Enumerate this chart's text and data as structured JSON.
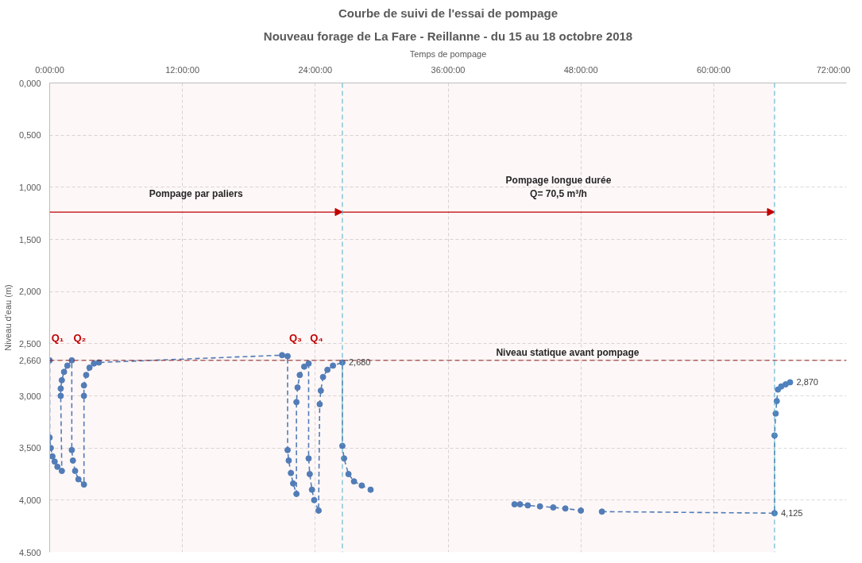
{
  "chart_data": {
    "type": "line",
    "title": "Courbe de suivi de l'essai de pompage",
    "subtitle": "Nouveau forage de La Fare - Reillanne - du 15 au 18 octobre 2018",
    "xlabel": "Temps de pompage",
    "ylabel": "Niveau d'eau (m)",
    "xlim": [
      0,
      72
    ],
    "xticks": [
      {
        "value": 0,
        "label": "0:00:00"
      },
      {
        "value": 12,
        "label": "12:00:00"
      },
      {
        "value": 24,
        "label": "24:00:00"
      },
      {
        "value": 36,
        "label": "36:00:00"
      },
      {
        "value": 48,
        "label": "48:00:00"
      },
      {
        "value": 60,
        "label": "60:00:00"
      },
      {
        "value": 72,
        "label": "72:00:00"
      }
    ],
    "ylim": [
      4.5,
      0
    ],
    "yticks": [
      {
        "value": 0,
        "label": "0,000"
      },
      {
        "value": 0.5,
        "label": "0,500"
      },
      {
        "value": 1,
        "label": "1,000"
      },
      {
        "value": 1.5,
        "label": "1,500"
      },
      {
        "value": 2,
        "label": "2,000"
      },
      {
        "value": 2.5,
        "label": "2,500"
      },
      {
        "value": 2.66,
        "label": "2,660"
      },
      {
        "value": 3,
        "label": "3,000"
      },
      {
        "value": 3.5,
        "label": "3,500"
      },
      {
        "value": 4,
        "label": "4,000"
      },
      {
        "value": 4.5,
        "label": "4,500"
      }
    ],
    "grid": true,
    "marker": "circle",
    "line_style": "dashed",
    "series": [
      {
        "color": "#4f81bd",
        "x": [
          0,
          0,
          0.1,
          0.25,
          0.45,
          0.7,
          1.1,
          1.0,
          1.0,
          1.1,
          1.3,
          1.6,
          2.0,
          2.0,
          2.1,
          2.3,
          2.6,
          3.1,
          3.1,
          3.1,
          3.3,
          3.6,
          4.0,
          4.45,
          21.0,
          21.5,
          21.5,
          21.6,
          21.8,
          22.0,
          22.3,
          22.3,
          22.4,
          22.6,
          23.0,
          23.4,
          23.4,
          23.5,
          23.7,
          23.9,
          24.3,
          24.4,
          24.5,
          24.7,
          25.1,
          25.6,
          26.45,
          26.45,
          26.6,
          27.0,
          27.5,
          28.2,
          29.0,
          35.0,
          42.0,
          42.5,
          43.2,
          44.3,
          45.5,
          46.6,
          48.0,
          49.0,
          49.9,
          65.5,
          65.5,
          65.6,
          65.7,
          65.8,
          66.1,
          66.5,
          66.9
        ],
        "values": [
          2.66,
          3.4,
          3.5,
          3.58,
          3.63,
          3.68,
          3.72,
          3.0,
          2.93,
          2.85,
          2.77,
          2.71,
          2.66,
          3.52,
          3.62,
          3.72,
          3.8,
          3.85,
          3.0,
          2.9,
          2.8,
          2.73,
          2.69,
          2.68,
          2.61,
          2.62,
          3.52,
          3.62,
          3.74,
          3.84,
          3.94,
          3.06,
          2.92,
          2.8,
          2.72,
          2.69,
          3.6,
          3.75,
          3.9,
          4.0,
          4.1,
          3.08,
          2.95,
          2.82,
          2.75,
          2.71,
          2.68,
          3.48,
          3.6,
          3.75,
          3.82,
          3.86,
          3.9,
          null,
          4.04,
          4.04,
          4.05,
          4.06,
          4.07,
          4.08,
          4.1,
          null,
          4.11,
          4.125,
          3.38,
          3.17,
          3.05,
          2.94,
          2.91,
          2.89,
          2.87
        ],
        "value_labels": [
          null,
          null,
          null,
          null,
          null,
          null,
          null,
          null,
          null,
          null,
          null,
          null,
          null,
          null,
          null,
          null,
          null,
          null,
          null,
          null,
          null,
          null,
          null,
          null,
          null,
          null,
          null,
          null,
          null,
          null,
          null,
          null,
          null,
          null,
          null,
          null,
          null,
          null,
          null,
          null,
          null,
          null,
          null,
          null,
          null,
          null,
          "2,680",
          null,
          null,
          null,
          null,
          null,
          null,
          null,
          null,
          null,
          null,
          null,
          null,
          null,
          null,
          null,
          null,
          "4,125",
          null,
          null,
          null,
          null,
          null,
          null,
          "2,870"
        ]
      }
    ],
    "ref_lines": [
      {
        "axis": "y",
        "value": 2.66,
        "label": "Niveau statique avant pompage",
        "color": "#8b1a1a",
        "line_style": "dashed"
      },
      {
        "axis": "x",
        "value": 26.45,
        "label": null,
        "color": "#4bacc6",
        "line_style": "dashed"
      },
      {
        "axis": "x",
        "value": 65.5,
        "label": null,
        "color": "#4bacc6",
        "line_style": "dashed"
      }
    ],
    "bands": [
      {
        "axis": "x",
        "from": 0,
        "to": 26.45,
        "label": "Pompage par paliers",
        "color": "#c00000"
      },
      {
        "axis": "x",
        "from": 26.45,
        "to": 65.5,
        "label": "Pompage longue durée\nQ= 70,5 m³/h",
        "color": "#c00000"
      }
    ],
    "annotations": [
      "Q₁",
      "Q₂",
      "Q₃",
      "Q₄"
    ]
  }
}
